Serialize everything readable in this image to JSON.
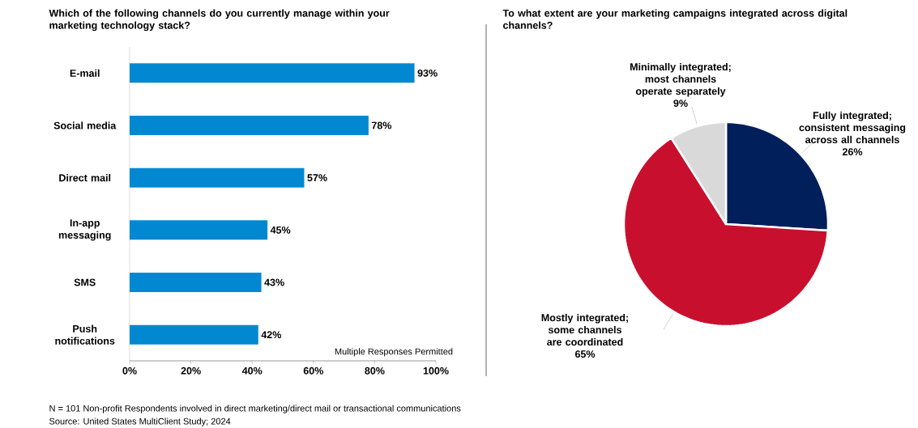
{
  "chart_data": [
    {
      "type": "bar",
      "orientation": "horizontal",
      "title": "Which of the following channels do you currently manage within your marketing technology stack?",
      "categories": [
        "E-mail",
        "Social media",
        "Direct mail",
        "In-app messaging",
        "SMS",
        "Push notifications"
      ],
      "values": [
        93,
        78,
        57,
        45,
        43,
        42
      ],
      "value_labels": [
        "93%",
        "78%",
        "57%",
        "45%",
        "43%",
        "42%"
      ],
      "color": "#0288d1",
      "xlim": [
        0,
        100
      ],
      "xticks": [
        {
          "value": 0,
          "label": "0%"
        },
        {
          "value": 20,
          "label": "20%"
        },
        {
          "value": 40,
          "label": "40%"
        },
        {
          "value": 60,
          "label": "60%"
        },
        {
          "value": 80,
          "label": "80%"
        },
        {
          "value": 100,
          "label": "100%"
        }
      ],
      "annotations": [
        "Multiple Responses Permitted",
        "N = 101 Non-profit Respondents involved in direct marketing/direct mail or transactional communications",
        "Source: United States MultiClient Study; 2024"
      ]
    },
    {
      "type": "pie",
      "title": "To what extent are your marketing campaigns integrated across digital channels?",
      "categories": [
        "Fully integrated; consistent messaging across all channels",
        "Mostly integrated; some channels are coordinated",
        "Minimally integrated; most channels operate separately"
      ],
      "values": [
        26,
        65,
        9
      ],
      "value_labels": [
        "26%",
        "65%",
        "9%"
      ],
      "colors": [
        "#001f5b",
        "#c8102e",
        "#d9d9d9"
      ]
    }
  ]
}
